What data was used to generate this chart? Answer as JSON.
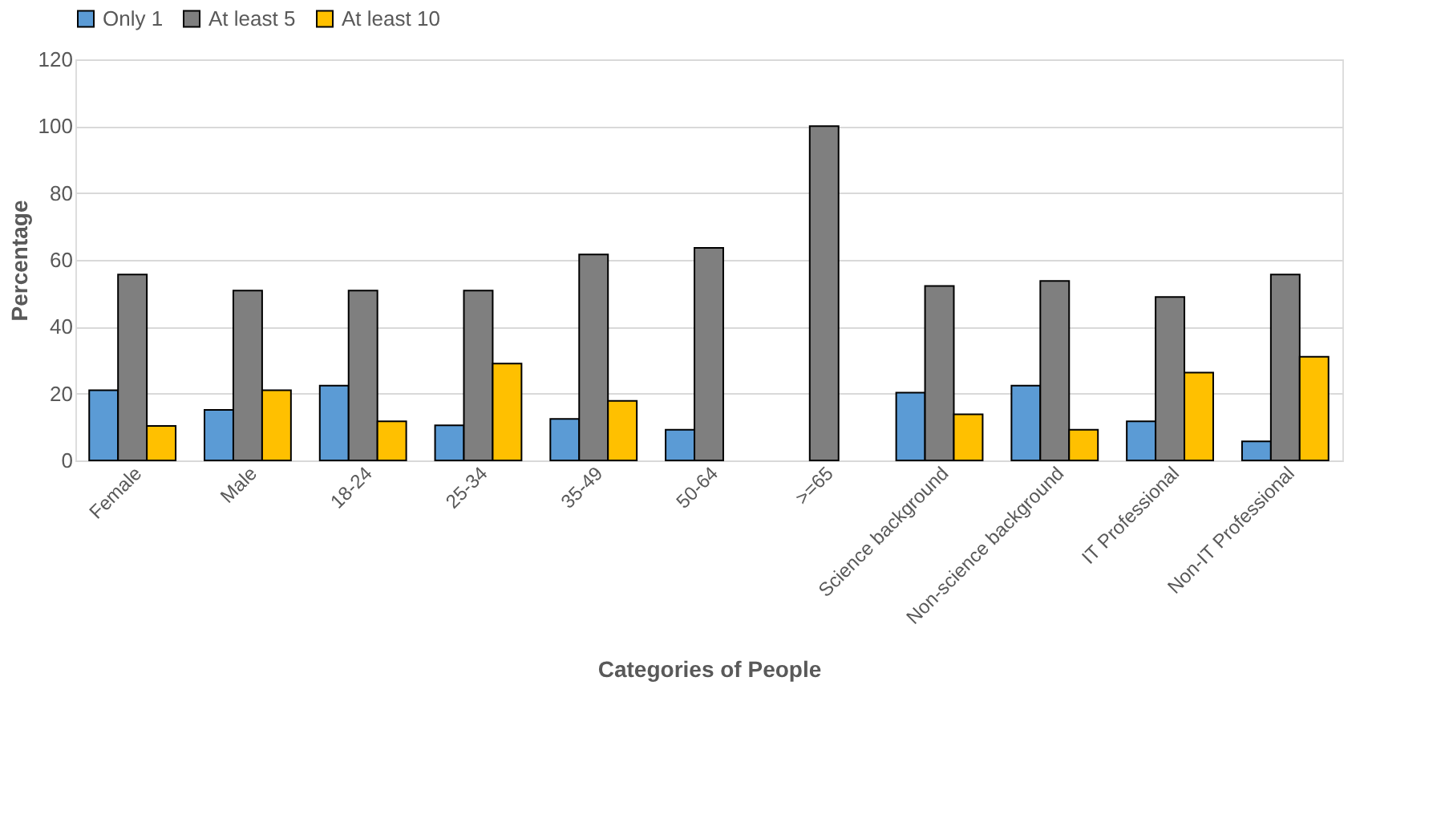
{
  "chart_data": {
    "type": "bar",
    "xlabel": "Categories of People",
    "ylabel": "Percentage",
    "categories": [
      "Female",
      "Male",
      "18-24",
      "25-34",
      "35-49",
      "50-64",
      ">=65",
      "Science background",
      "Non-science background",
      "IT Professional",
      "Non-IT Professional"
    ],
    "series": [
      {
        "name": "Only 1",
        "color": "#5b9bd5",
        "values": [
          21,
          15.1,
          22.4,
          10.5,
          12.4,
          9.2,
          null,
          20.3,
          22.4,
          11.7,
          5.7
        ]
      },
      {
        "name": "At least 5",
        "color": "#7f7f7f",
        "values": [
          55.6,
          50.8,
          50.8,
          50.8,
          61.6,
          63.6,
          100,
          52.2,
          53.7,
          48.9,
          55.6
        ]
      },
      {
        "name": "At least 10",
        "color": "#ffc000",
        "values": [
          10.3,
          21,
          11.7,
          29,
          17.8,
          null,
          null,
          13.8,
          9.2,
          26.3,
          31
        ]
      }
    ],
    "ylim": [
      0,
      120
    ],
    "yticks": [
      0,
      20,
      40,
      60,
      80,
      100,
      120
    ],
    "grid": "y",
    "legend": "top"
  }
}
